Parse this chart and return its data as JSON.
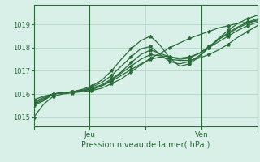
{
  "title": "",
  "xlabel": "Pression niveau de la mer( hPa )",
  "bg_color": "#d8f0e8",
  "grid_color": "#b0d8c0",
  "line_color": "#2a6b3a",
  "marker_color": "#2a6b3a",
  "ylim": [
    1014.6,
    1019.85
  ],
  "xlim": [
    0,
    48
  ],
  "yticks": [
    1015,
    1016,
    1017,
    1018,
    1019
  ],
  "xtick_labels": [
    "",
    "Jeu",
    "",
    "Ven",
    ""
  ],
  "xtick_positions": [
    0,
    12,
    24,
    36,
    48
  ],
  "vlines": [
    12,
    36
  ],
  "series": [
    [
      1015.0,
      1015.55,
      1015.9,
      1016.0,
      1016.05,
      1016.1,
      1016.15,
      1016.25,
      1016.45,
      1016.65,
      1016.95,
      1017.25,
      1017.55,
      1017.75,
      1018.0,
      1018.2,
      1018.4,
      1018.55,
      1018.7,
      1018.85,
      1018.95,
      1019.05,
      1019.1,
      1019.15
    ],
    [
      1015.75,
      1015.9,
      1016.0,
      1016.05,
      1016.1,
      1016.15,
      1016.2,
      1016.35,
      1016.55,
      1016.8,
      1017.05,
      1017.3,
      1017.5,
      1017.6,
      1017.5,
      1017.45,
      1017.45,
      1017.55,
      1017.7,
      1017.9,
      1018.15,
      1018.45,
      1018.7,
      1018.95
    ],
    [
      1015.65,
      1015.85,
      1016.0,
      1016.05,
      1016.1,
      1016.15,
      1016.2,
      1016.35,
      1016.6,
      1016.9,
      1017.2,
      1017.5,
      1017.7,
      1017.65,
      1017.6,
      1017.55,
      1017.6,
      1017.75,
      1018.0,
      1018.25,
      1018.5,
      1018.75,
      1018.95,
      1019.1
    ],
    [
      1015.6,
      1015.8,
      1016.0,
      1016.05,
      1016.1,
      1016.15,
      1016.25,
      1016.4,
      1016.65,
      1016.95,
      1017.35,
      1017.7,
      1017.9,
      1017.75,
      1017.6,
      1017.5,
      1017.55,
      1017.75,
      1018.05,
      1018.35,
      1018.6,
      1018.85,
      1019.05,
      1019.2
    ],
    [
      1015.55,
      1015.75,
      1016.0,
      1016.05,
      1016.1,
      1016.15,
      1016.3,
      1016.5,
      1016.8,
      1017.2,
      1017.6,
      1017.95,
      1018.05,
      1017.7,
      1017.4,
      1017.3,
      1017.4,
      1017.65,
      1018.0,
      1018.35,
      1018.65,
      1018.9,
      1019.1,
      1019.25
    ],
    [
      1015.5,
      1015.7,
      1016.0,
      1016.05,
      1016.1,
      1016.2,
      1016.35,
      1016.6,
      1017.0,
      1017.5,
      1017.95,
      1018.3,
      1018.5,
      1018.1,
      1017.55,
      1017.2,
      1017.3,
      1017.6,
      1018.0,
      1018.4,
      1018.75,
      1019.05,
      1019.25,
      1019.4
    ]
  ],
  "markers_every": 2,
  "marker_size": 3,
  "line_width": 0.9
}
